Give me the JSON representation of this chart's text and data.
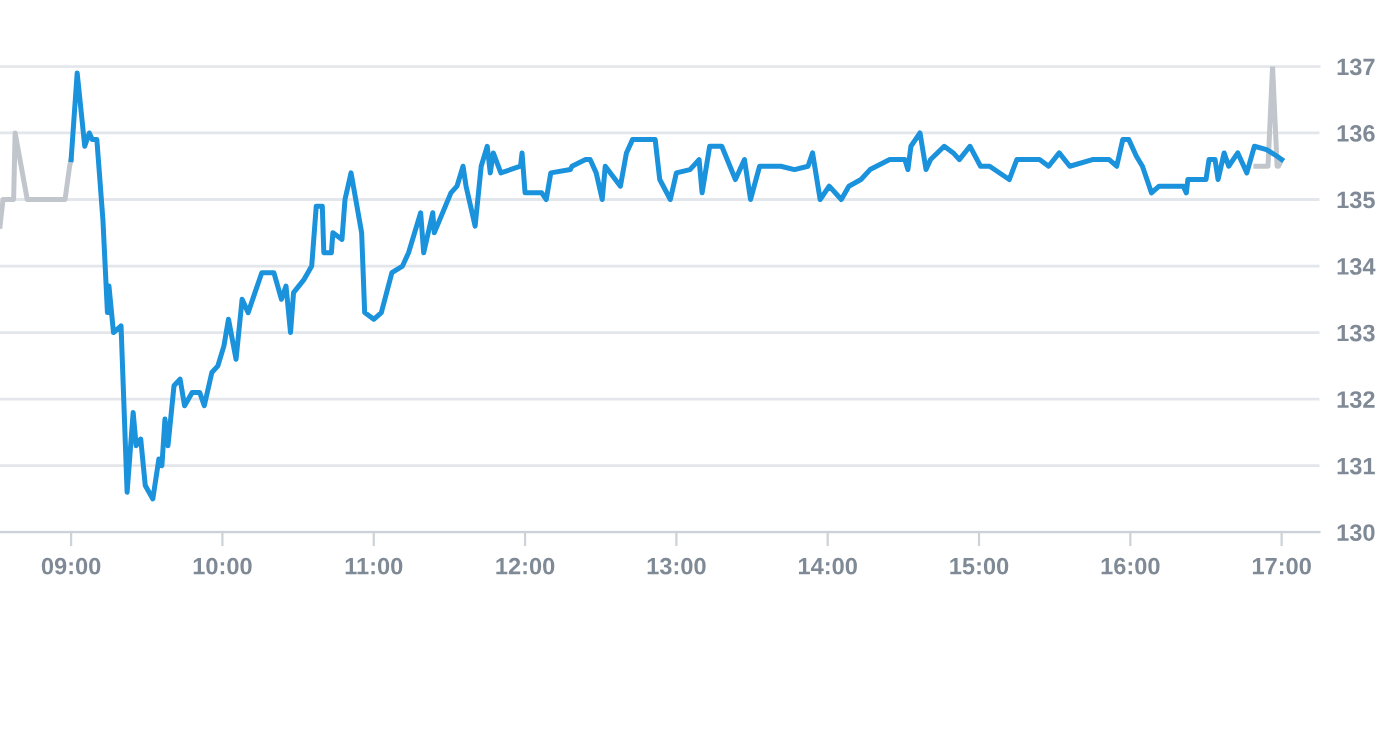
{
  "chart_data": {
    "type": "line",
    "xlim": [
      8.53,
      17.25
    ],
    "ylim": [
      130,
      137
    ],
    "xticks": [
      {
        "value": 9,
        "label": "09:00"
      },
      {
        "value": 10,
        "label": "10:00"
      },
      {
        "value": 11,
        "label": "11:00"
      },
      {
        "value": 12,
        "label": "12:00"
      },
      {
        "value": 13,
        "label": "13:00"
      },
      {
        "value": 14,
        "label": "14:00"
      },
      {
        "value": 15,
        "label": "15:00"
      },
      {
        "value": 16,
        "label": "16:00"
      },
      {
        "value": 17,
        "label": "17:00"
      }
    ],
    "yticks": [
      130,
      131,
      132,
      133,
      134,
      135,
      136,
      137
    ],
    "grid": "y",
    "marker": "none",
    "line_style": "solid",
    "series": [
      {
        "color": "#c0c6cc",
        "x": [
          8.53,
          8.55,
          8.62,
          8.63,
          8.71,
          8.96,
          8.99,
          9.0
        ],
        "values": [
          134.6,
          135.0,
          135.0,
          136.0,
          135.0,
          135.0,
          135.5,
          135.6
        ]
      },
      {
        "color": "#c0c6cc",
        "x": [
          16.83,
          16.91,
          16.94,
          16.97,
          16.98,
          17.0
        ],
        "values": [
          135.5,
          135.5,
          137.0,
          135.5,
          135.5,
          135.6
        ]
      },
      {
        "color": "#1a92dc",
        "x": [
          9.0,
          9.04,
          9.09,
          9.12,
          9.14,
          9.17,
          9.21,
          9.24,
          9.25,
          9.28,
          9.33,
          9.37,
          9.41,
          9.43,
          9.46,
          9.49,
          9.54,
          9.58,
          9.6,
          9.62,
          9.64,
          9.68,
          9.72,
          9.75,
          9.8,
          9.85,
          9.88,
          9.93,
          9.97,
          10.01,
          10.04,
          10.09,
          10.13,
          10.17,
          10.26,
          10.31,
          10.34,
          10.39,
          10.42,
          10.45,
          10.47,
          10.54,
          10.59,
          10.62,
          10.66,
          10.67,
          10.72,
          10.73,
          10.79,
          10.81,
          10.85,
          10.92,
          10.94,
          11.0,
          11.05,
          11.12,
          11.19,
          11.23,
          11.31,
          11.33,
          11.39,
          11.4,
          11.51,
          11.55,
          11.59,
          11.61,
          11.67,
          11.71,
          11.75,
          11.77,
          11.79,
          11.84,
          11.97,
          11.98,
          12.0,
          12.11,
          12.14,
          12.17,
          12.3,
          12.31,
          12.4,
          12.43,
          12.47,
          12.51,
          12.53,
          12.63,
          12.67,
          12.71,
          12.77,
          12.86,
          12.89,
          12.96,
          13.0,
          13.09,
          13.15,
          13.17,
          13.22,
          13.3,
          13.39,
          13.45,
          13.49,
          13.55,
          13.69,
          13.78,
          13.87,
          13.9,
          13.95,
          14.01,
          14.09,
          14.14,
          14.22,
          14.28,
          14.41,
          14.51,
          14.53,
          14.55,
          14.61,
          14.65,
          14.68,
          14.77,
          14.83,
          14.87,
          14.94,
          15.01,
          15.07,
          15.2,
          15.25,
          15.4,
          15.46,
          15.53,
          15.6,
          15.75,
          15.86,
          15.91,
          15.95,
          15.99,
          16.04,
          16.08,
          16.14,
          16.19,
          16.35,
          16.37,
          16.38,
          16.5,
          16.52,
          16.56,
          16.58,
          16.62,
          16.65,
          16.71,
          16.77,
          16.82,
          16.9,
          16.97,
          17.0
        ],
        "values": [
          135.6,
          136.9,
          135.8,
          136.0,
          135.9,
          135.9,
          134.7,
          133.3,
          133.7,
          133.0,
          133.1,
          130.6,
          131.8,
          131.3,
          131.4,
          130.7,
          130.5,
          131.1,
          131.0,
          131.7,
          131.3,
          132.2,
          132.3,
          131.9,
          132.1,
          132.1,
          131.9,
          132.4,
          132.5,
          132.8,
          133.2,
          132.6,
          133.5,
          133.3,
          133.9,
          133.9,
          133.9,
          133.5,
          133.7,
          133.0,
          133.6,
          133.8,
          134.0,
          134.9,
          134.9,
          134.2,
          134.2,
          134.5,
          134.4,
          135.0,
          135.4,
          134.5,
          133.3,
          133.2,
          133.3,
          133.9,
          134.0,
          134.2,
          134.8,
          134.2,
          134.8,
          134.5,
          135.1,
          135.2,
          135.5,
          135.2,
          134.6,
          135.5,
          135.8,
          135.4,
          135.7,
          135.4,
          135.5,
          135.7,
          135.1,
          135.1,
          135.0,
          135.4,
          135.45,
          135.5,
          135.6,
          135.6,
          135.4,
          135.0,
          135.5,
          135.2,
          135.7,
          135.9,
          135.9,
          135.9,
          135.3,
          135.0,
          135.4,
          135.45,
          135.6,
          135.1,
          135.8,
          135.8,
          135.3,
          135.6,
          135.0,
          135.5,
          135.5,
          135.45,
          135.5,
          135.7,
          135.0,
          135.2,
          135.0,
          135.2,
          135.3,
          135.45,
          135.6,
          135.6,
          135.45,
          135.8,
          136.0,
          135.45,
          135.6,
          135.8,
          135.7,
          135.6,
          135.8,
          135.5,
          135.5,
          135.3,
          135.6,
          135.6,
          135.5,
          135.7,
          135.5,
          135.6,
          135.6,
          135.5,
          135.9,
          135.9,
          135.65,
          135.5,
          135.1,
          135.2,
          135.2,
          135.1,
          135.3,
          135.3,
          135.6,
          135.6,
          135.3,
          135.7,
          135.5,
          135.7,
          135.4,
          135.8,
          135.75,
          135.65,
          135.6
        ]
      }
    ]
  }
}
